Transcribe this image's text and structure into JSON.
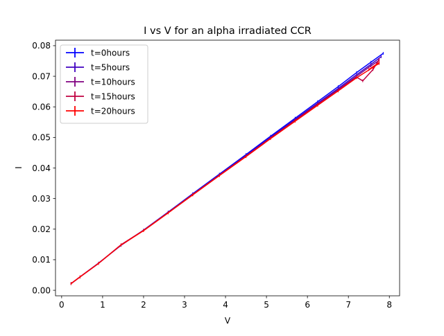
{
  "chart_data": {
    "type": "line",
    "title": "I vs V for an alpha irradiated CCR",
    "xlabel": "V",
    "ylabel": "I",
    "xlim": [
      -0.15,
      8.25
    ],
    "ylim": [
      -0.0018,
      0.0818
    ],
    "x_ticks": [
      0,
      1,
      2,
      3,
      4,
      5,
      6,
      7,
      8
    ],
    "x_tick_labels": [
      "0",
      "1",
      "2",
      "3",
      "4",
      "5",
      "6",
      "7",
      "8"
    ],
    "y_ticks": [
      0.0,
      0.01,
      0.02,
      0.03,
      0.04,
      0.05,
      0.06,
      0.07,
      0.08
    ],
    "y_tick_labels": [
      "0.00",
      "0.01",
      "0.02",
      "0.03",
      "0.04",
      "0.05",
      "0.06",
      "0.07",
      "0.08"
    ],
    "grid": false,
    "legend_position": "top-left",
    "series": [
      {
        "name": "t=0hours",
        "color": "#0000ff",
        "x": [
          0.23,
          0.45,
          0.9,
          1.45,
          2.0,
          2.6,
          3.2,
          3.85,
          4.5,
          5.1,
          5.7,
          6.25,
          6.75,
          7.2,
          7.55,
          7.85
        ],
        "y": [
          0.0022,
          0.0044,
          0.0089,
          0.0147,
          0.0197,
          0.0256,
          0.0316,
          0.038,
          0.0444,
          0.0504,
          0.0563,
          0.0617,
          0.0666,
          0.0712,
          0.0746,
          0.0775
        ]
      },
      {
        "name": "t=5hours",
        "color": "#4000c0",
        "x": [
          0.23,
          0.45,
          0.9,
          1.45,
          2.0,
          2.6,
          3.2,
          3.85,
          4.5,
          5.1,
          5.7,
          6.25,
          6.75,
          7.2,
          7.55,
          7.8
        ],
        "y": [
          0.0022,
          0.0044,
          0.0088,
          0.0148,
          0.0196,
          0.0255,
          0.0314,
          0.0378,
          0.0441,
          0.05,
          0.0559,
          0.0612,
          0.066,
          0.0705,
          0.0739,
          0.0764
        ]
      },
      {
        "name": "t=10hours",
        "color": "#800080",
        "x": [
          0.23,
          0.45,
          0.9,
          1.45,
          2.0,
          2.6,
          3.2,
          3.85,
          4.5,
          5.1,
          5.7,
          6.25,
          6.75,
          7.2,
          7.55,
          7.75
        ],
        "y": [
          0.0022,
          0.0044,
          0.0088,
          0.0149,
          0.0196,
          0.0254,
          0.0313,
          0.0376,
          0.0439,
          0.0498,
          0.0556,
          0.0609,
          0.0656,
          0.07,
          0.0734,
          0.0752
        ]
      },
      {
        "name": "t=15hours",
        "color": "#c00040",
        "x": [
          0.23,
          0.45,
          0.9,
          1.45,
          2.0,
          2.6,
          3.2,
          3.85,
          4.5,
          5.1,
          5.7,
          6.25,
          6.75,
          7.2,
          7.35,
          7.6,
          7.75
        ],
        "y": [
          0.0022,
          0.0044,
          0.0088,
          0.0149,
          0.0196,
          0.0254,
          0.0313,
          0.0376,
          0.0438,
          0.0497,
          0.0555,
          0.0607,
          0.0653,
          0.0697,
          0.0685,
          0.0722,
          0.0755
        ]
      },
      {
        "name": "t=20hours",
        "color": "#ff0000",
        "x": [
          0.23,
          0.45,
          0.9,
          1.45,
          2.0,
          2.6,
          3.2,
          3.85,
          4.5,
          5.1,
          5.7,
          6.25,
          6.75,
          7.2,
          7.6,
          7.75,
          7.5,
          7.75
        ],
        "y": [
          0.0022,
          0.0044,
          0.0088,
          0.0148,
          0.0195,
          0.0253,
          0.0312,
          0.0375,
          0.0437,
          0.0496,
          0.0553,
          0.0605,
          0.0652,
          0.0695,
          0.0729,
          0.0745,
          0.0722,
          0.0742
        ]
      }
    ]
  }
}
